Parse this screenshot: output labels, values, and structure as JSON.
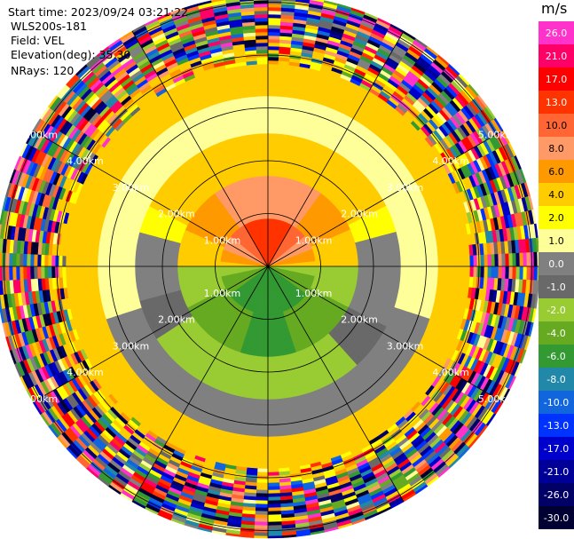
{
  "header": {
    "start_time": "Start time: 2023/09/24 03:21:22",
    "instrument": "WLS200s-181",
    "field": "Field: VEL",
    "elevation": "Elevation(deg): 35.30",
    "nrays": "NRays: 120"
  },
  "colorbar": {
    "unit": "m/s",
    "ticks": [
      "26.0",
      "21.0",
      "17.0",
      "13.0",
      "10.0",
      "8.0",
      "6.0",
      "4.0",
      "2.0",
      "1.0",
      "0.0",
      "-1.0",
      "-2.0",
      "-4.0",
      "-6.0",
      "-8.0",
      "-10.0",
      "-13.0",
      "-17.0",
      "-21.0",
      "-26.0",
      "-30.0"
    ],
    "colors": [
      "#ff33cc",
      "#ff0066",
      "#ff0000",
      "#ff3300",
      "#ff6633",
      "#ff9966",
      "#ff9900",
      "#ffcc00",
      "#ffff00",
      "#ffff99",
      "#808080",
      "#696969",
      "#99cc33",
      "#66aa22",
      "#339933",
      "#2288aa",
      "#1166dd",
      "#0033ff",
      "#0000cc",
      "#000099",
      "#000066",
      "#000033"
    ]
  },
  "chart_data": {
    "type": "heatmap",
    "title": "",
    "range_rings_km": [
      1.0,
      2.0,
      3.0,
      4.0,
      5.0
    ],
    "range_labels": [
      "1.00km",
      "2.00km",
      "3.00km",
      "4.00km",
      "5.00km"
    ],
    "n_rays": 120,
    "value_range": [
      -30.0,
      26.0
    ],
    "unit": "m/s"
  }
}
